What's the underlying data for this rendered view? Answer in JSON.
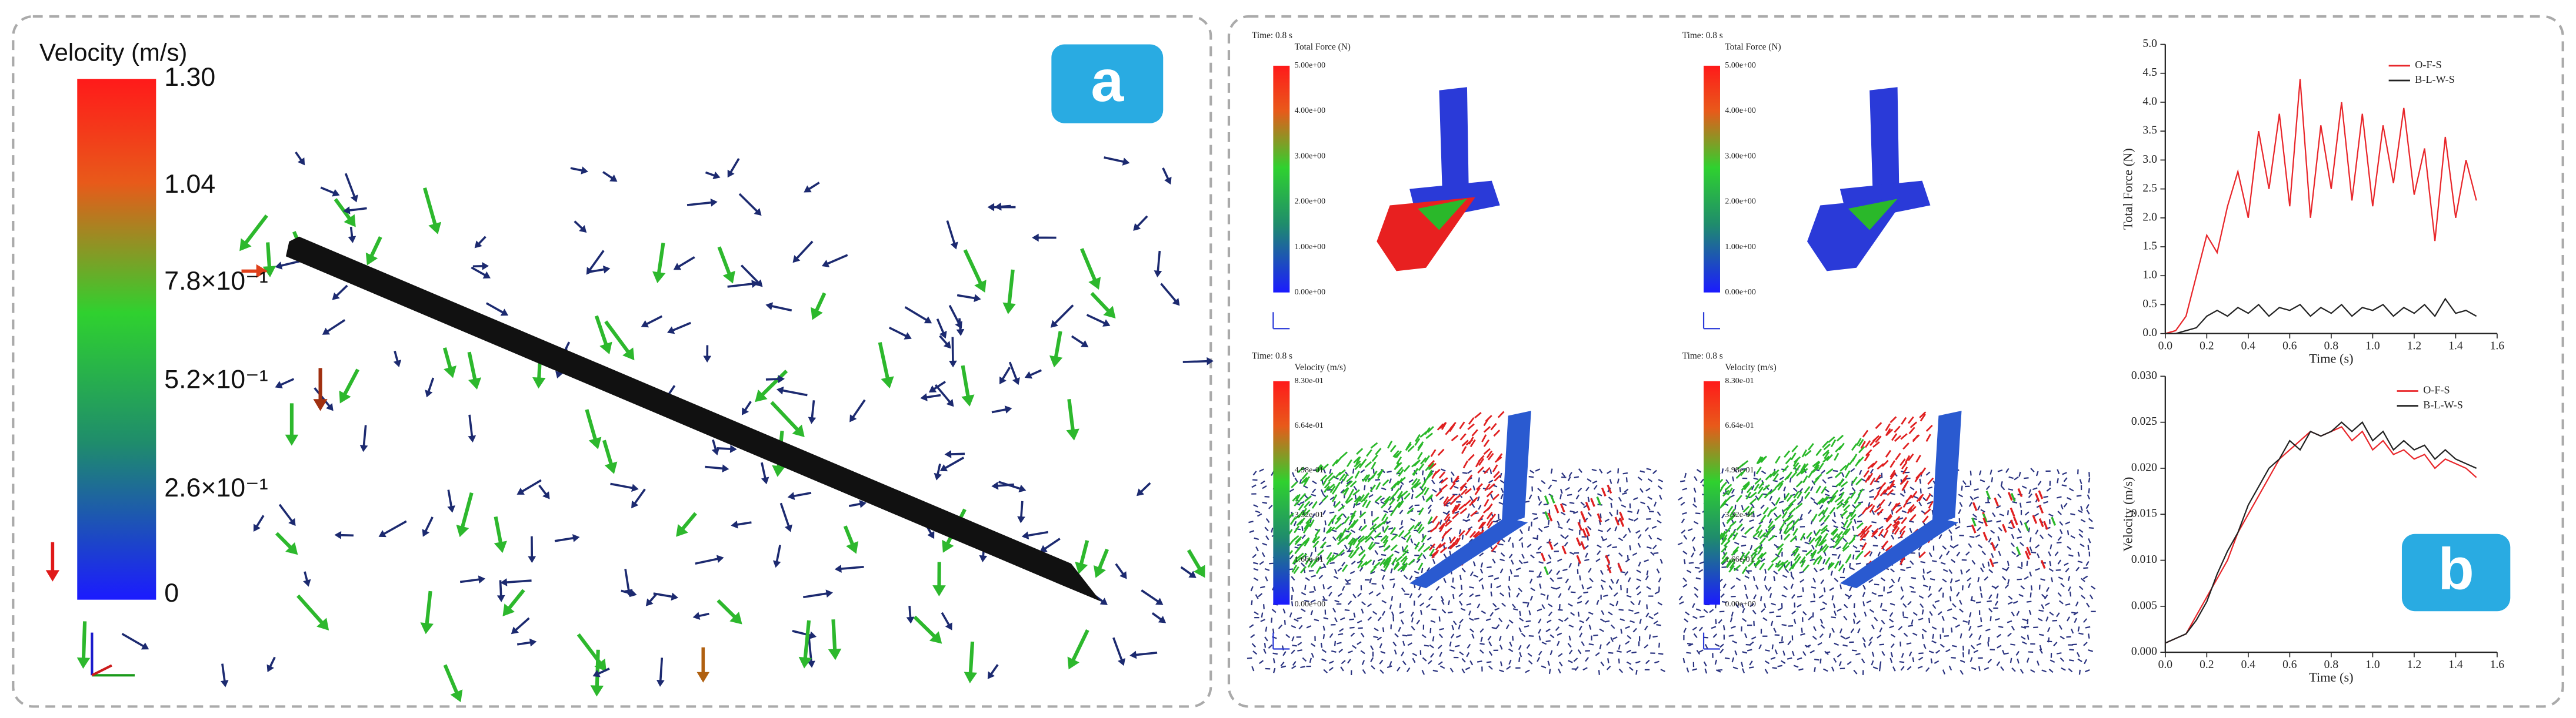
{
  "panel_a": {
    "label": "a",
    "colorbar": {
      "title": "Velocity (m/s)",
      "ticks": [
        "1.30",
        "1.04",
        "7.8×10⁻¹",
        "5.2×10⁻¹",
        "2.6×10⁻¹",
        "0"
      ]
    }
  },
  "panel_b": {
    "label": "b",
    "simulations": [
      {
        "time": "Time: 0.8 s",
        "colorbar_title": "Total Force (N)",
        "ticks": [
          "5.00e+00",
          "4.00e+00",
          "3.00e+00",
          "2.00e+00",
          "1.00e+00",
          "0.00e+00"
        ]
      },
      {
        "time": "Time: 0.8 s",
        "colorbar_title": "Total Force (N)",
        "ticks": [
          "5.00e+00",
          "4.00e+00",
          "3.00e+00",
          "2.00e+00",
          "1.00e+00",
          "0.00e+00"
        ]
      },
      {
        "time": "Time: 0.8 s",
        "colorbar_title": "Velocity (m/s)",
        "ticks": [
          "8.30e-01",
          "6.64e-01",
          "4.98e-01",
          "3.32e-01",
          "1.66e-01",
          "0.00e+00"
        ]
      },
      {
        "time": "Time: 0.8 s",
        "colorbar_title": "Velocity (m/s)",
        "ticks": [
          "8.30e-01",
          "6.64e-01",
          "4.98e-01",
          "3.32e-01",
          "1.66e-01",
          "0.00e+00"
        ]
      }
    ]
  },
  "chart_data": [
    {
      "type": "line",
      "x_label": "Time (s)",
      "y_label": "Total Force (N)",
      "x": [
        0,
        0.05,
        0.1,
        0.15,
        0.2,
        0.25,
        0.3,
        0.35,
        0.4,
        0.45,
        0.5,
        0.55,
        0.6,
        0.65,
        0.7,
        0.75,
        0.8,
        0.85,
        0.9,
        0.95,
        1.0,
        1.05,
        1.1,
        1.15,
        1.2,
        1.25,
        1.3,
        1.35,
        1.4,
        1.45,
        1.5
      ],
      "series": [
        {
          "name": "O-F-S",
          "color": "#e8262a",
          "values": [
            0,
            0.05,
            0.3,
            1.0,
            1.7,
            1.4,
            2.2,
            2.8,
            2.0,
            3.5,
            2.5,
            3.8,
            2.2,
            4.4,
            2.0,
            3.6,
            2.5,
            4.0,
            2.3,
            3.8,
            2.2,
            3.6,
            2.6,
            3.9,
            2.4,
            3.2,
            1.6,
            3.4,
            2.0,
            3.0,
            2.3
          ]
        },
        {
          "name": "B-L-W-S",
          "color": "#222222",
          "values": [
            0,
            0,
            0.05,
            0.1,
            0.3,
            0.4,
            0.3,
            0.45,
            0.35,
            0.5,
            0.3,
            0.45,
            0.4,
            0.5,
            0.3,
            0.45,
            0.35,
            0.5,
            0.3,
            0.45,
            0.4,
            0.5,
            0.3,
            0.45,
            0.35,
            0.5,
            0.3,
            0.6,
            0.35,
            0.4,
            0.3
          ]
        }
      ],
      "xlim": [
        0,
        1.6
      ],
      "ylim": [
        0,
        5
      ],
      "xticks": [
        {
          "value": 0,
          "label": "0.0"
        },
        0.2,
        0.4,
        0.6,
        0.8,
        {
          "value": 1,
          "label": "1.0"
        },
        1.2,
        1.4,
        1.6
      ],
      "yticks": [
        {
          "value": 0,
          "label": "0.0"
        },
        0.5,
        {
          "value": 1,
          "label": "1.0"
        },
        1.5,
        {
          "value": 2,
          "label": "2.0"
        },
        2.5,
        {
          "value": 3,
          "label": "3.0"
        },
        3.5,
        {
          "value": 4,
          "label": "4.0"
        },
        4.5,
        {
          "value": 5,
          "label": "5.0"
        }
      ],
      "legend": "upper right"
    },
    {
      "type": "line",
      "x_label": "Time (s)",
      "y_label": "Velocity (m/s)",
      "x": [
        0,
        0.05,
        0.1,
        0.15,
        0.2,
        0.25,
        0.3,
        0.35,
        0.4,
        0.45,
        0.5,
        0.55,
        0.6,
        0.65,
        0.7,
        0.75,
        0.8,
        0.85,
        0.9,
        0.95,
        1.0,
        1.05,
        1.1,
        1.15,
        1.2,
        1.25,
        1.3,
        1.35,
        1.4,
        1.45,
        1.5
      ],
      "series": [
        {
          "name": "O-F-S",
          "color": "#e8262a",
          "values": [
            0.001,
            0.0015,
            0.002,
            0.004,
            0.006,
            0.008,
            0.01,
            0.013,
            0.015,
            0.017,
            0.019,
            0.021,
            0.022,
            0.023,
            0.024,
            0.0235,
            0.024,
            0.0245,
            0.023,
            0.024,
            0.022,
            0.023,
            0.0215,
            0.022,
            0.021,
            0.0215,
            0.02,
            0.021,
            0.0205,
            0.02,
            0.019
          ]
        },
        {
          "name": "B-L-W-S",
          "color": "#222222",
          "values": [
            0.001,
            0.0015,
            0.002,
            0.0035,
            0.0055,
            0.0085,
            0.011,
            0.013,
            0.016,
            0.018,
            0.02,
            0.021,
            0.023,
            0.022,
            0.024,
            0.0235,
            0.024,
            0.025,
            0.024,
            0.025,
            0.023,
            0.024,
            0.022,
            0.023,
            0.022,
            0.0225,
            0.021,
            0.022,
            0.021,
            0.0205,
            0.02
          ]
        }
      ],
      "xlim": [
        0,
        1.6
      ],
      "ylim": [
        0,
        0.03
      ],
      "xticks": [
        {
          "value": 0,
          "label": "0.0"
        },
        0.2,
        0.4,
        0.6,
        0.8,
        {
          "value": 1,
          "label": "1.0"
        },
        1.2,
        1.4,
        1.6
      ],
      "yticks": [
        {
          "value": 0,
          "label": "0.000"
        },
        {
          "value": 0.005,
          "label": "0.005"
        },
        {
          "value": 0.01,
          "label": "0.010"
        },
        {
          "value": 0.015,
          "label": "0.015"
        },
        {
          "value": 0.02,
          "label": "0.020"
        },
        {
          "value": 0.025,
          "label": "0.025"
        },
        {
          "value": 0.03,
          "label": "0.030"
        }
      ],
      "legend": "upper right"
    }
  ]
}
